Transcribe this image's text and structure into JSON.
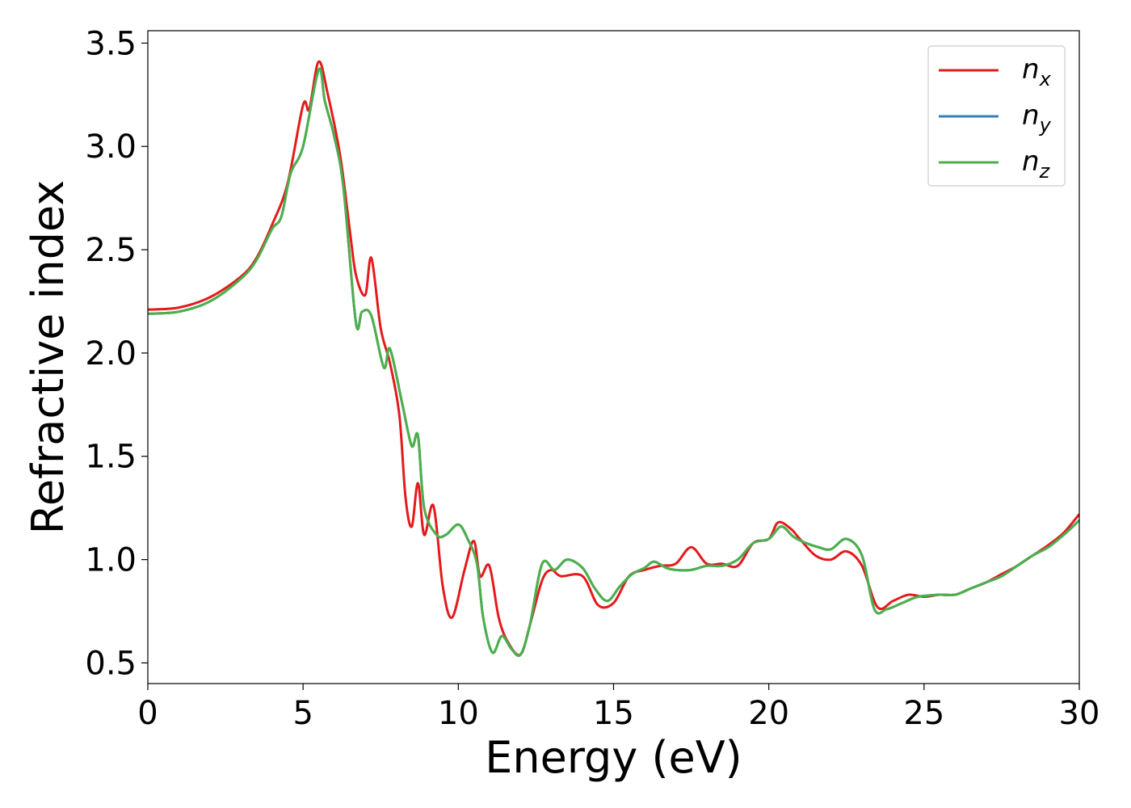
{
  "chart_data": {
    "type": "line",
    "title": "",
    "xlabel": "Energy (eV)",
    "ylabel": "Refractive index",
    "xlim": [
      0,
      30
    ],
    "ylim": [
      0.4,
      3.56
    ],
    "xticks": [
      0,
      5,
      10,
      15,
      20,
      25,
      30
    ],
    "xtick_labels": [
      "0",
      "5",
      "10",
      "15",
      "20",
      "25",
      "30"
    ],
    "yticks": [
      0.5,
      1.0,
      1.5,
      2.0,
      2.5,
      3.0,
      3.5
    ],
    "ytick_labels": [
      "0.5",
      "1.0",
      "1.5",
      "2.0",
      "2.5",
      "3.0",
      "3.5"
    ],
    "grid": false,
    "legend": {
      "position": "top-right"
    },
    "series": [
      {
        "name": "n_x",
        "label_base": "n",
        "label_sub": "x",
        "color": "#e41a1c",
        "points": [
          [
            0,
            2.21
          ],
          [
            1,
            2.22
          ],
          [
            2,
            2.27
          ],
          [
            3,
            2.37
          ],
          [
            3.5,
            2.46
          ],
          [
            4,
            2.62
          ],
          [
            4.5,
            2.82
          ],
          [
            5,
            3.2
          ],
          [
            5.2,
            3.18
          ],
          [
            5.5,
            3.41
          ],
          [
            5.8,
            3.25
          ],
          [
            6.2,
            2.95
          ],
          [
            6.5,
            2.6
          ],
          [
            6.7,
            2.38
          ],
          [
            7.0,
            2.28
          ],
          [
            7.2,
            2.46
          ],
          [
            7.5,
            2.12
          ],
          [
            7.8,
            1.95
          ],
          [
            8.1,
            1.7
          ],
          [
            8.3,
            1.3
          ],
          [
            8.5,
            1.16
          ],
          [
            8.7,
            1.37
          ],
          [
            8.9,
            1.12
          ],
          [
            9.2,
            1.26
          ],
          [
            9.5,
            0.87
          ],
          [
            9.8,
            0.72
          ],
          [
            10.2,
            0.95
          ],
          [
            10.5,
            1.09
          ],
          [
            10.7,
            0.92
          ],
          [
            11.0,
            0.97
          ],
          [
            11.3,
            0.72
          ],
          [
            11.6,
            0.6
          ],
          [
            12.0,
            0.54
          ],
          [
            12.3,
            0.68
          ],
          [
            12.7,
            0.9
          ],
          [
            13.0,
            0.95
          ],
          [
            13.3,
            0.92
          ],
          [
            14.0,
            0.92
          ],
          [
            14.5,
            0.78
          ],
          [
            15.0,
            0.79
          ],
          [
            15.5,
            0.92
          ],
          [
            16.0,
            0.95
          ],
          [
            16.5,
            0.97
          ],
          [
            17.0,
            0.98
          ],
          [
            17.5,
            1.06
          ],
          [
            18.0,
            0.98
          ],
          [
            18.5,
            0.98
          ],
          [
            19.0,
            0.97
          ],
          [
            19.5,
            1.08
          ],
          [
            20.0,
            1.1
          ],
          [
            20.3,
            1.18
          ],
          [
            20.7,
            1.15
          ],
          [
            21.0,
            1.1
          ],
          [
            21.5,
            1.02
          ],
          [
            22.0,
            1.0
          ],
          [
            22.5,
            1.04
          ],
          [
            23.0,
            0.97
          ],
          [
            23.5,
            0.77
          ],
          [
            24.0,
            0.8
          ],
          [
            24.5,
            0.83
          ],
          [
            25.0,
            0.82
          ],
          [
            25.5,
            0.83
          ],
          [
            26.0,
            0.83
          ],
          [
            26.5,
            0.86
          ],
          [
            27.0,
            0.89
          ],
          [
            27.5,
            0.93
          ],
          [
            28.0,
            0.97
          ],
          [
            28.5,
            1.02
          ],
          [
            29.0,
            1.07
          ],
          [
            29.5,
            1.13
          ],
          [
            30,
            1.22
          ]
        ]
      },
      {
        "name": "n_y",
        "label_base": "n",
        "label_sub": "y",
        "color": "#377eb8",
        "points": [
          [
            0,
            2.19
          ],
          [
            1,
            2.2
          ],
          [
            2,
            2.25
          ],
          [
            3,
            2.36
          ],
          [
            3.5,
            2.45
          ],
          [
            4,
            2.6
          ],
          [
            4.3,
            2.66
          ],
          [
            4.6,
            2.87
          ],
          [
            5.0,
            3.0
          ],
          [
            5.5,
            3.37
          ],
          [
            5.7,
            3.22
          ],
          [
            6.0,
            3.05
          ],
          [
            6.3,
            2.8
          ],
          [
            6.7,
            2.15
          ],
          [
            6.9,
            2.2
          ],
          [
            7.2,
            2.18
          ],
          [
            7.6,
            1.93
          ],
          [
            7.8,
            2.02
          ],
          [
            8.2,
            1.75
          ],
          [
            8.5,
            1.55
          ],
          [
            8.7,
            1.6
          ],
          [
            8.9,
            1.25
          ],
          [
            9.3,
            1.12
          ],
          [
            9.6,
            1.12
          ],
          [
            10.0,
            1.17
          ],
          [
            10.3,
            1.1
          ],
          [
            10.6,
            0.98
          ],
          [
            10.8,
            0.72
          ],
          [
            11.1,
            0.55
          ],
          [
            11.4,
            0.63
          ],
          [
            11.7,
            0.57
          ],
          [
            12.0,
            0.54
          ],
          [
            12.3,
            0.68
          ],
          [
            12.7,
            0.98
          ],
          [
            13.1,
            0.95
          ],
          [
            13.5,
            1.0
          ],
          [
            14.0,
            0.96
          ],
          [
            14.4,
            0.86
          ],
          [
            14.8,
            0.8
          ],
          [
            15.2,
            0.87
          ],
          [
            15.6,
            0.93
          ],
          [
            16.0,
            0.96
          ],
          [
            16.3,
            0.99
          ],
          [
            16.7,
            0.96
          ],
          [
            17.0,
            0.95
          ],
          [
            17.5,
            0.95
          ],
          [
            18.0,
            0.97
          ],
          [
            18.5,
            0.97
          ],
          [
            19.0,
            1.0
          ],
          [
            19.5,
            1.08
          ],
          [
            20.0,
            1.1
          ],
          [
            20.4,
            1.16
          ],
          [
            20.8,
            1.11
          ],
          [
            21.2,
            1.08
          ],
          [
            21.6,
            1.06
          ],
          [
            22.0,
            1.05
          ],
          [
            22.5,
            1.1
          ],
          [
            23.0,
            1.02
          ],
          [
            23.4,
            0.76
          ],
          [
            23.8,
            0.76
          ],
          [
            24.3,
            0.79
          ],
          [
            24.8,
            0.82
          ],
          [
            25.5,
            0.83
          ],
          [
            26.0,
            0.83
          ],
          [
            26.5,
            0.86
          ],
          [
            27.0,
            0.89
          ],
          [
            27.5,
            0.92
          ],
          [
            28.0,
            0.97
          ],
          [
            28.5,
            1.02
          ],
          [
            29.0,
            1.06
          ],
          [
            29.5,
            1.12
          ],
          [
            30,
            1.19
          ]
        ]
      },
      {
        "name": "n_z",
        "label_base": "n",
        "label_sub": "z",
        "color": "#4daf4a",
        "points": [
          [
            0,
            2.19
          ],
          [
            1,
            2.2
          ],
          [
            2,
            2.25
          ],
          [
            3,
            2.36
          ],
          [
            3.5,
            2.45
          ],
          [
            4,
            2.6
          ],
          [
            4.3,
            2.66
          ],
          [
            4.6,
            2.87
          ],
          [
            5.0,
            3.0
          ],
          [
            5.5,
            3.37
          ],
          [
            5.7,
            3.22
          ],
          [
            6.0,
            3.05
          ],
          [
            6.3,
            2.8
          ],
          [
            6.7,
            2.15
          ],
          [
            6.9,
            2.2
          ],
          [
            7.2,
            2.18
          ],
          [
            7.6,
            1.93
          ],
          [
            7.8,
            2.02
          ],
          [
            8.2,
            1.75
          ],
          [
            8.5,
            1.55
          ],
          [
            8.7,
            1.6
          ],
          [
            8.9,
            1.25
          ],
          [
            9.3,
            1.12
          ],
          [
            9.6,
            1.12
          ],
          [
            10.0,
            1.17
          ],
          [
            10.3,
            1.1
          ],
          [
            10.6,
            0.98
          ],
          [
            10.8,
            0.72
          ],
          [
            11.1,
            0.55
          ],
          [
            11.4,
            0.63
          ],
          [
            11.7,
            0.57
          ],
          [
            12.0,
            0.54
          ],
          [
            12.3,
            0.68
          ],
          [
            12.7,
            0.98
          ],
          [
            13.1,
            0.95
          ],
          [
            13.5,
            1.0
          ],
          [
            14.0,
            0.96
          ],
          [
            14.4,
            0.86
          ],
          [
            14.8,
            0.8
          ],
          [
            15.2,
            0.87
          ],
          [
            15.6,
            0.93
          ],
          [
            16.0,
            0.96
          ],
          [
            16.3,
            0.99
          ],
          [
            16.7,
            0.96
          ],
          [
            17.0,
            0.95
          ],
          [
            17.5,
            0.95
          ],
          [
            18.0,
            0.97
          ],
          [
            18.5,
            0.97
          ],
          [
            19.0,
            1.0
          ],
          [
            19.5,
            1.08
          ],
          [
            20.0,
            1.1
          ],
          [
            20.4,
            1.16
          ],
          [
            20.8,
            1.11
          ],
          [
            21.2,
            1.08
          ],
          [
            21.6,
            1.06
          ],
          [
            22.0,
            1.05
          ],
          [
            22.5,
            1.1
          ],
          [
            23.0,
            1.02
          ],
          [
            23.4,
            0.76
          ],
          [
            23.8,
            0.76
          ],
          [
            24.3,
            0.79
          ],
          [
            24.8,
            0.82
          ],
          [
            25.5,
            0.83
          ],
          [
            26.0,
            0.83
          ],
          [
            26.5,
            0.86
          ],
          [
            27.0,
            0.89
          ],
          [
            27.5,
            0.92
          ],
          [
            28.0,
            0.97
          ],
          [
            28.5,
            1.02
          ],
          [
            29.0,
            1.06
          ],
          [
            29.5,
            1.12
          ],
          [
            30,
            1.19
          ]
        ]
      }
    ]
  }
}
